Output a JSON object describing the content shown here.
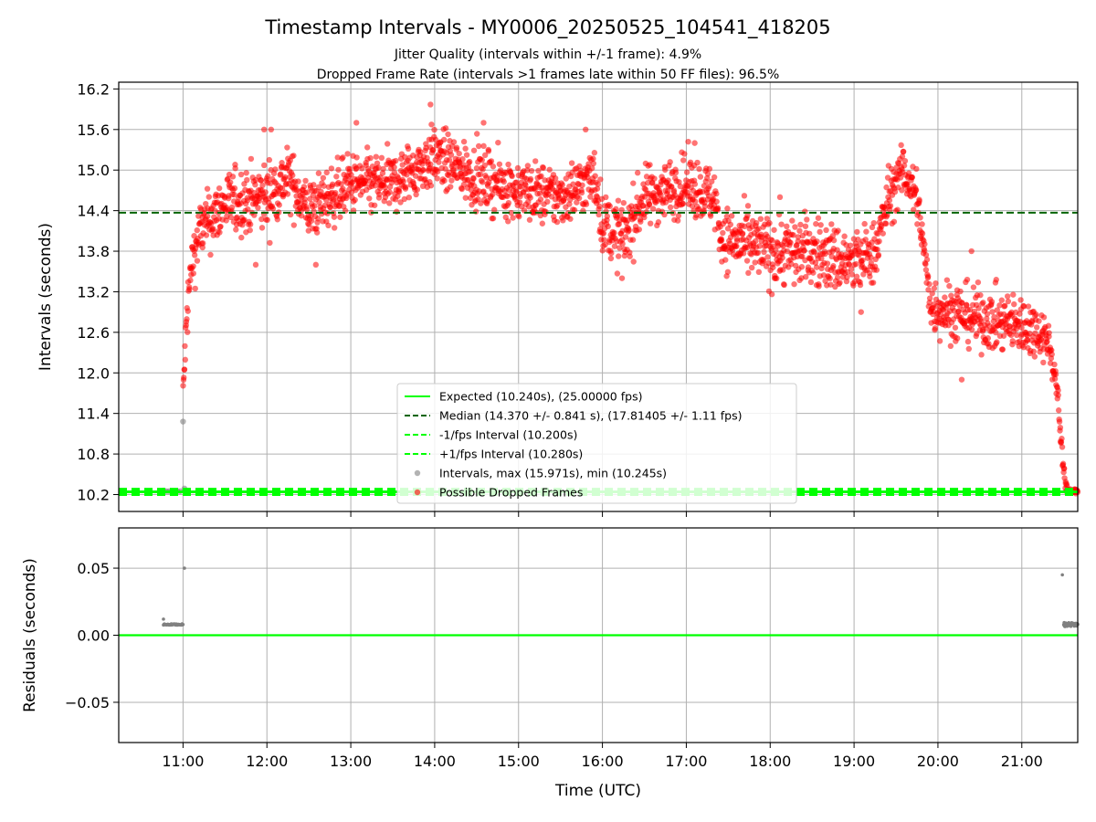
{
  "title": "Timestamp Intervals - MY0006_20250525_104541_418205",
  "subtitle_1": "Jitter Quality (intervals within +/-1 frame): 4.9%",
  "subtitle_2": "Dropped Frame Rate (intervals >1 frames late within 50 FF files): 96.5%",
  "colors": {
    "expected": "#00ff00",
    "median": "#006400",
    "fps_band": "#00ff00",
    "intervals": "#808080",
    "dropped": "#ff0000",
    "grid": "#b0b0b0"
  },
  "chart_data": [
    {
      "type": "scatter",
      "ylabel": "Intervals (seconds)",
      "xlabel": "",
      "x_unit": "time of day (UTC)",
      "xlim": [
        "10:14",
        "21:40"
      ],
      "ylim": [
        9.95,
        16.3
      ],
      "yticks": [
        10.2,
        10.8,
        11.4,
        12.0,
        12.6,
        13.2,
        13.8,
        14.4,
        15.0,
        15.6,
        16.2
      ],
      "ytick_labels": [
        "10.2",
        "10.8",
        "11.4",
        "12.0",
        "12.6",
        "13.2",
        "13.8",
        "14.4",
        "15.0",
        "15.6",
        "16.2"
      ],
      "grid": true,
      "legend_position": "bottom-center",
      "reference_lines": [
        {
          "name": "expected",
          "label": "Expected (10.240s), (25.00000 fps)",
          "y": 10.24,
          "style": "solid"
        },
        {
          "name": "median",
          "label": "Median (14.370 +/- 0.841 s), (17.81405 +/- 1.11 fps)",
          "y": 14.37,
          "style": "dashed"
        },
        {
          "name": "minus-fps",
          "label": "-1/fps Interval (10.200s)",
          "y": 10.2,
          "style": "dashed"
        },
        {
          "name": "plus-fps",
          "label": "+1/fps Interval (10.280s)",
          "y": 10.28,
          "style": "dashed"
        }
      ],
      "series": [
        {
          "name": "Intervals, max (15.971s), min (10.245s)",
          "color": "#808080",
          "points": [
            {
              "t": "10:46",
              "y": 10.26
            },
            {
              "t": "10:48",
              "y": 10.25
            },
            {
              "t": "10:50",
              "y": 10.25
            },
            {
              "t": "10:52",
              "y": 10.25
            },
            {
              "t": "10:54",
              "y": 10.25
            },
            {
              "t": "10:56",
              "y": 10.25
            },
            {
              "t": "10:58",
              "y": 10.25
            },
            {
              "t": "11:00",
              "y": 11.28
            },
            {
              "t": "11:01",
              "y": 10.29
            },
            {
              "t": "21:32",
              "y": 10.25
            },
            {
              "t": "21:34",
              "y": 10.25
            },
            {
              "t": "21:36",
              "y": 10.25
            }
          ]
        },
        {
          "name": "Possible Dropped Frames",
          "color": "#ff0000",
          "trend": [
            {
              "t": "11:00",
              "y": 11.7,
              "spread": 0.15
            },
            {
              "t": "11:03",
              "y": 12.9,
              "spread": 0.3
            },
            {
              "t": "11:06",
              "y": 13.6,
              "spread": 0.3
            },
            {
              "t": "11:12",
              "y": 14.1,
              "spread": 0.3
            },
            {
              "t": "11:30",
              "y": 14.5,
              "spread": 0.32
            },
            {
              "t": "12:00",
              "y": 14.6,
              "spread": 0.35
            },
            {
              "t": "12:15",
              "y": 14.9,
              "spread": 0.3
            },
            {
              "t": "12:30",
              "y": 14.4,
              "spread": 0.3
            },
            {
              "t": "13:00",
              "y": 14.8,
              "spread": 0.3
            },
            {
              "t": "13:30",
              "y": 14.8,
              "spread": 0.3
            },
            {
              "t": "14:00",
              "y": 15.2,
              "spread": 0.3
            },
            {
              "t": "14:30",
              "y": 14.9,
              "spread": 0.3
            },
            {
              "t": "15:00",
              "y": 14.7,
              "spread": 0.3
            },
            {
              "t": "15:30",
              "y": 14.6,
              "spread": 0.3
            },
            {
              "t": "15:55",
              "y": 14.9,
              "spread": 0.3
            },
            {
              "t": "16:00",
              "y": 14.2,
              "spread": 0.3
            },
            {
              "t": "16:15",
              "y": 14.0,
              "spread": 0.35
            },
            {
              "t": "16:30",
              "y": 14.6,
              "spread": 0.3
            },
            {
              "t": "17:00",
              "y": 14.8,
              "spread": 0.3
            },
            {
              "t": "17:20",
              "y": 14.6,
              "spread": 0.3
            },
            {
              "t": "17:25",
              "y": 14.0,
              "spread": 0.3
            },
            {
              "t": "18:00",
              "y": 13.8,
              "spread": 0.35
            },
            {
              "t": "18:30",
              "y": 13.8,
              "spread": 0.35
            },
            {
              "t": "19:00",
              "y": 13.6,
              "spread": 0.35
            },
            {
              "t": "19:15",
              "y": 13.8,
              "spread": 0.3
            },
            {
              "t": "19:25",
              "y": 14.6,
              "spread": 0.3
            },
            {
              "t": "19:35",
              "y": 15.0,
              "spread": 0.25
            },
            {
              "t": "19:45",
              "y": 14.6,
              "spread": 0.3
            },
            {
              "t": "19:50",
              "y": 13.8,
              "spread": 0.2
            },
            {
              "t": "19:55",
              "y": 13.0,
              "spread": 0.3
            },
            {
              "t": "20:30",
              "y": 12.8,
              "spread": 0.3
            },
            {
              "t": "21:00",
              "y": 12.7,
              "spread": 0.3
            },
            {
              "t": "21:15",
              "y": 12.6,
              "spread": 0.25
            },
            {
              "t": "21:20",
              "y": 12.4,
              "spread": 0.2
            },
            {
              "t": "21:25",
              "y": 11.8,
              "spread": 0.15
            },
            {
              "t": "21:28",
              "y": 11.0,
              "spread": 0.15
            },
            {
              "t": "21:31",
              "y": 10.4,
              "spread": 0.1
            },
            {
              "t": "21:33",
              "y": 10.25,
              "spread": 0.02
            },
            {
              "t": "21:40",
              "y": 10.25,
              "spread": 0.02
            }
          ],
          "outliers": [
            {
              "t": "13:57",
              "y": 15.97
            },
            {
              "t": "13:04",
              "y": 15.7
            },
            {
              "t": "11:58",
              "y": 15.6
            },
            {
              "t": "12:03",
              "y": 15.6
            },
            {
              "t": "14:35",
              "y": 15.7
            },
            {
              "t": "15:48",
              "y": 15.6
            },
            {
              "t": "20:24",
              "y": 13.8
            },
            {
              "t": "12:35",
              "y": 13.6
            },
            {
              "t": "11:52",
              "y": 13.6
            },
            {
              "t": "16:14",
              "y": 13.4
            },
            {
              "t": "18:07",
              "y": 14.6
            },
            {
              "t": "19:05",
              "y": 12.9
            },
            {
              "t": "20:17",
              "y": 11.9
            },
            {
              "t": "17:06",
              "y": 15.4
            }
          ]
        }
      ]
    },
    {
      "type": "scatter",
      "ylabel": "Residuals (seconds)",
      "xlabel": "Time (UTC)",
      "xlim": [
        "10:14",
        "21:40"
      ],
      "ylim": [
        -0.08,
        0.08
      ],
      "yticks": [
        -0.05,
        0.0,
        0.05
      ],
      "ytick_labels": [
        "−0.05",
        "0.00",
        "0.05"
      ],
      "xticks": [
        "11:00",
        "12:00",
        "13:00",
        "14:00",
        "15:00",
        "16:00",
        "17:00",
        "18:00",
        "19:00",
        "20:00",
        "21:00"
      ],
      "grid": true,
      "reference_lines": [
        {
          "name": "zero-residual",
          "y": 0.0,
          "style": "solid",
          "color": "#00ff00"
        }
      ],
      "series": [
        {
          "name": "residuals",
          "color": "#808080",
          "points": [
            {
              "t": "10:46",
              "y": 0.012
            },
            {
              "t": "10:47",
              "y": 0.008
            },
            {
              "t": "10:49",
              "y": 0.008
            },
            {
              "t": "10:51",
              "y": 0.008
            },
            {
              "t": "10:53",
              "y": 0.008
            },
            {
              "t": "10:55",
              "y": 0.008
            },
            {
              "t": "10:57",
              "y": 0.008
            },
            {
              "t": "10:59",
              "y": 0.008
            },
            {
              "t": "11:00",
              "y": 0.008
            },
            {
              "t": "11:01",
              "y": 0.05
            },
            {
              "t": "21:29",
              "y": 0.045
            },
            {
              "t": "21:30",
              "y": 0.008
            },
            {
              "t": "21:32",
              "y": 0.008
            },
            {
              "t": "21:34",
              "y": 0.008
            },
            {
              "t": "21:36",
              "y": 0.009
            },
            {
              "t": "21:38",
              "y": 0.007
            },
            {
              "t": "21:40",
              "y": 0.008
            }
          ]
        }
      ]
    }
  ]
}
